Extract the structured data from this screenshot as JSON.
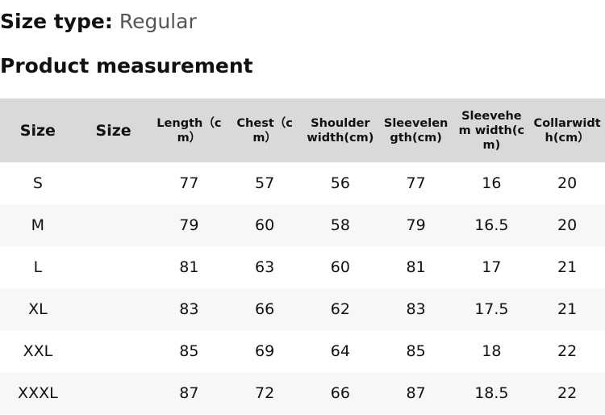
{
  "size_type": {
    "label": "Size type:",
    "value": "Regular"
  },
  "section_title": "Product measurement",
  "table": {
    "headers": [
      "Size",
      "Size",
      "Length（cm）",
      "Chest（cm）",
      "Shoulder width(cm)",
      "Sleevelength(cm)",
      "Sleevehem width(cm)",
      "Collarwidth(cm）"
    ],
    "rows": [
      [
        "S",
        "",
        "77",
        "57",
        "56",
        "77",
        "16",
        "20"
      ],
      [
        "M",
        "",
        "79",
        "60",
        "58",
        "79",
        "16.5",
        "20"
      ],
      [
        "L",
        "",
        "81",
        "63",
        "60",
        "81",
        "17",
        "21"
      ],
      [
        "XL",
        "",
        "83",
        "66",
        "62",
        "83",
        "17.5",
        "21"
      ],
      [
        "XXL",
        "",
        "85",
        "69",
        "64",
        "85",
        "18",
        "22"
      ],
      [
        "XXXL",
        "",
        "87",
        "72",
        "66",
        "87",
        "18.5",
        "22"
      ]
    ]
  }
}
